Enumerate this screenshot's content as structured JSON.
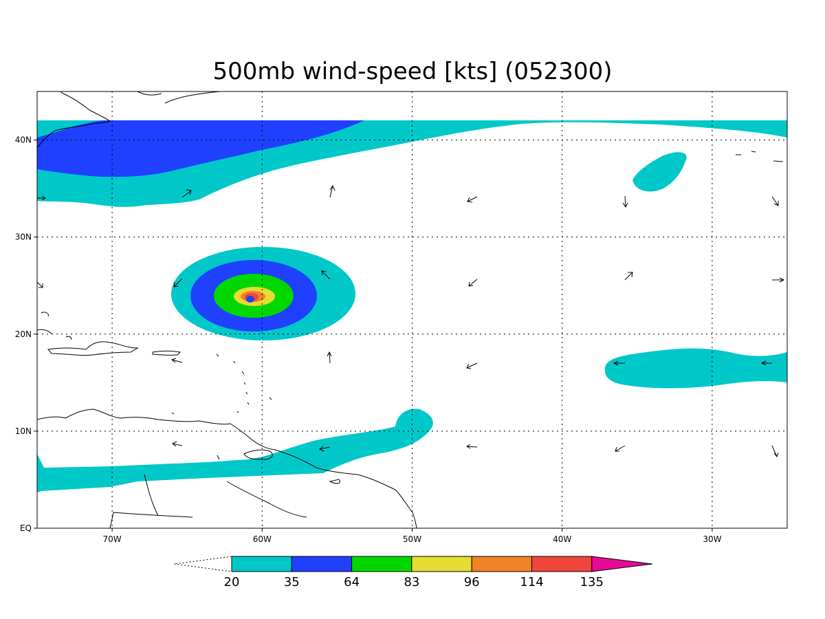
{
  "title": "500mb wind-speed [kts] (052300)",
  "map": {
    "lon_range": [
      -75,
      -25
    ],
    "lat_range": [
      0,
      45
    ],
    "lon_ticks": [
      {
        "value": -70,
        "label": "70W"
      },
      {
        "value": -60,
        "label": "60W"
      },
      {
        "value": -50,
        "label": "50W"
      },
      {
        "value": -40,
        "label": "40W"
      },
      {
        "value": -30,
        "label": "30W"
      }
    ],
    "lat_ticks": [
      {
        "value": 0,
        "label": "EQ"
      },
      {
        "value": 10,
        "label": "10N"
      },
      {
        "value": 20,
        "label": "20N"
      },
      {
        "value": 30,
        "label": "30N"
      },
      {
        "value": 40,
        "label": "40N"
      }
    ],
    "grid": "dotted",
    "features": [
      "coastlines",
      "wind-vectors",
      "shaded-wind-speed"
    ]
  },
  "colorbar": {
    "placement": "bottom",
    "levels": [
      "20",
      "35",
      "64",
      "83",
      "96",
      "114",
      "135"
    ],
    "colors": [
      "#00c8c8",
      "#2040ff",
      "#00d800",
      "#e6dc32",
      "#f08228",
      "#f0463c",
      "#e60a96"
    ]
  },
  "colors": {
    "cyan": "#00c8c8",
    "blue": "#2040ff",
    "green": "#00d800",
    "yellow": "#e6dc32",
    "orange": "#f08228",
    "red": "#f0463c",
    "magenta": "#e60a96"
  }
}
